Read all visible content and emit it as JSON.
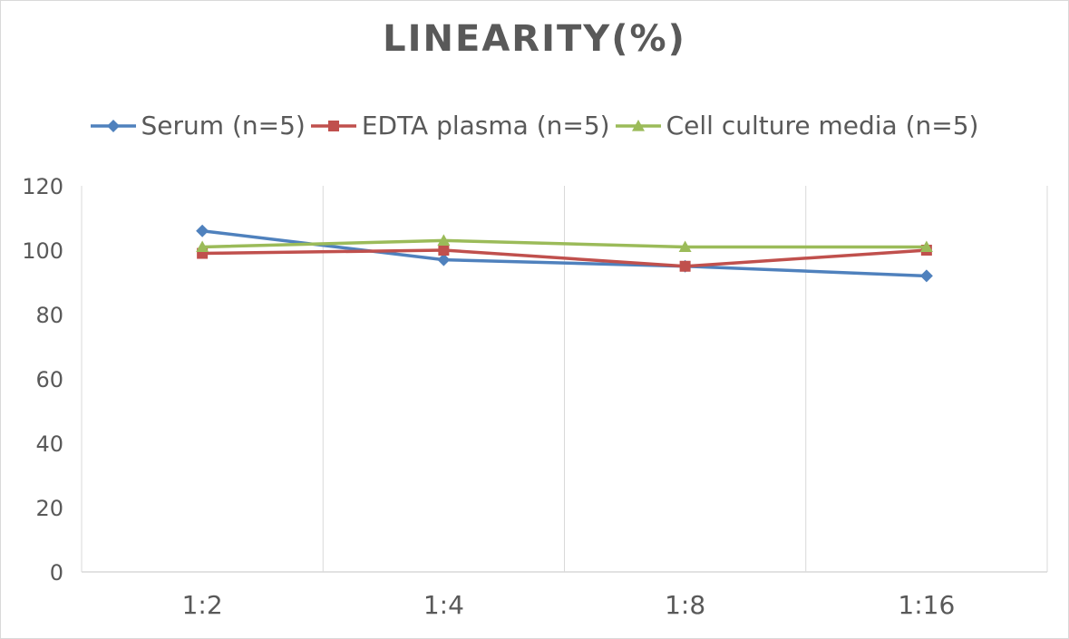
{
  "chart_data": {
    "type": "line",
    "title": "LINEARITY(%)",
    "categories": [
      "1:2",
      "1:4",
      "1:8",
      "1:16"
    ],
    "ylim": [
      0,
      120
    ],
    "yticks": [
      0,
      20,
      40,
      60,
      80,
      100,
      120
    ],
    "grid": "vertical",
    "legend_position": "top",
    "series": [
      {
        "name": "Serum (n=5)",
        "values": [
          106,
          97,
          95,
          92
        ],
        "color": "#4f81bd",
        "marker": "diamond"
      },
      {
        "name": "EDTA plasma (n=5)",
        "values": [
          99,
          100,
          95,
          100
        ],
        "color": "#c0504d",
        "marker": "square"
      },
      {
        "name": "Cell culture media (n=5)",
        "values": [
          101,
          103,
          101,
          101
        ],
        "color": "#9bbb59",
        "marker": "triangle"
      }
    ]
  }
}
